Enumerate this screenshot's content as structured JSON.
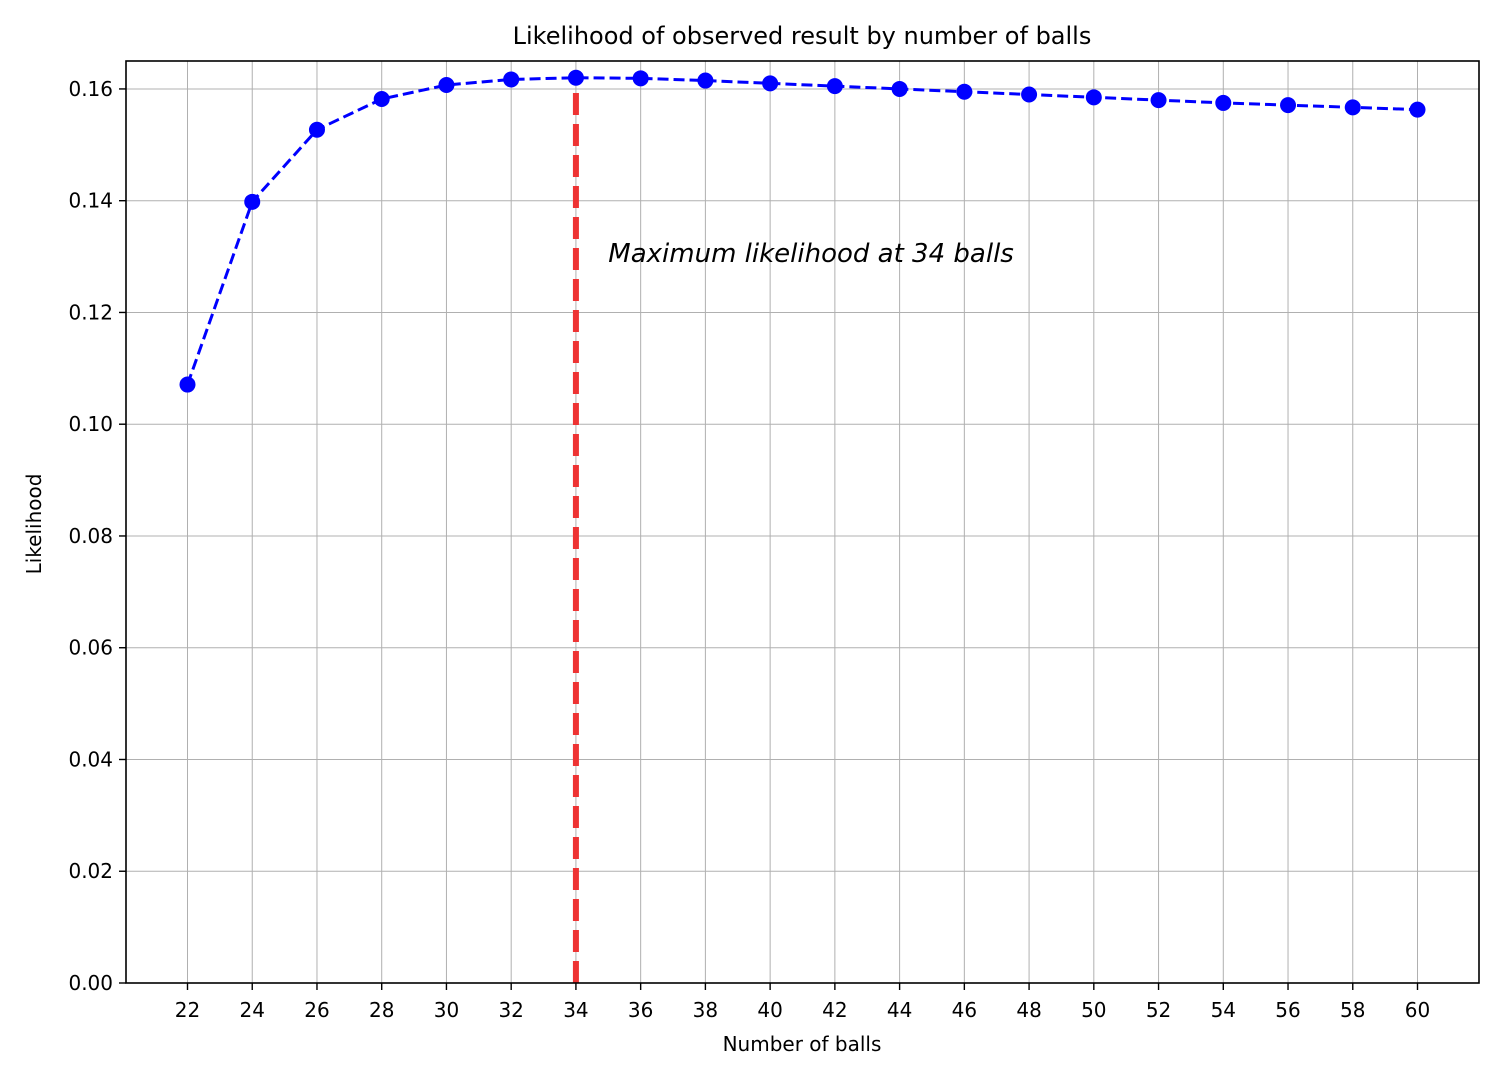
{
  "chart_data": {
    "type": "line",
    "title": "Likelihood of observed result by number of balls",
    "xlabel": "Number of balls",
    "ylabel": "Likelihood",
    "xlim": [
      20.1,
      61.9
    ],
    "ylim": [
      0.0,
      0.165
    ],
    "xticks": [
      22,
      24,
      26,
      28,
      30,
      32,
      34,
      36,
      38,
      40,
      42,
      44,
      46,
      48,
      50,
      52,
      54,
      56,
      58,
      60
    ],
    "yticks": [
      0.0,
      0.02,
      0.04,
      0.06,
      0.08,
      0.1,
      0.12,
      0.14,
      0.16
    ],
    "ytick_labels": [
      "0.00",
      "0.02",
      "0.04",
      "0.06",
      "0.08",
      "0.10",
      "0.12",
      "0.14",
      "0.16"
    ],
    "grid": true,
    "series": [
      {
        "color": "#0000ff",
        "line_style": "dashed",
        "marker": "circle",
        "x": [
          22,
          24,
          26,
          28,
          30,
          32,
          34,
          36,
          38,
          40,
          42,
          44,
          46,
          48,
          50,
          52,
          54,
          56,
          58,
          60
        ],
        "y": [
          0.1071,
          0.1398,
          0.1527,
          0.1582,
          0.1607,
          0.1617,
          0.162,
          0.1619,
          0.1615,
          0.161,
          0.1605,
          0.16,
          0.1595,
          0.159,
          0.1585,
          0.158,
          0.1575,
          0.1571,
          0.1567,
          0.1563
        ]
      }
    ],
    "reference_line": {
      "orientation": "vertical",
      "x": 34,
      "color": "#ee3333",
      "line_style": "dashed"
    },
    "annotation": {
      "text": "Maximum likelihood at 34 balls",
      "x": 35,
      "y": 0.129
    }
  }
}
